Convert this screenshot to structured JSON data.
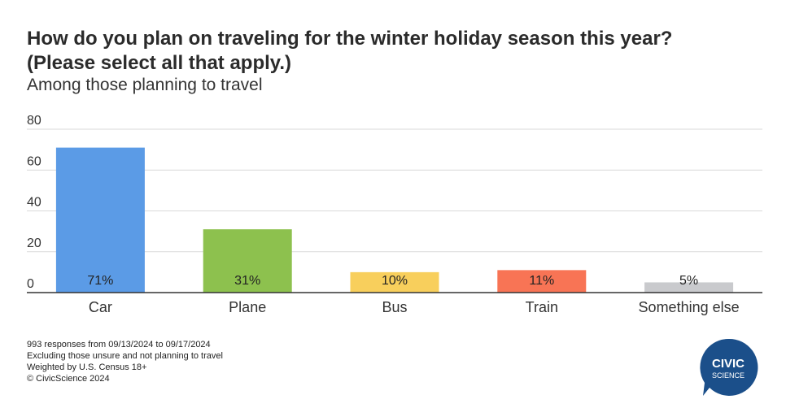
{
  "title_line1": "How do you plan on traveling for the winter holiday season this year?",
  "title_line2": "(Please select all that apply.)",
  "subtitle": "Among those planning to travel",
  "footnotes": [
    "993 responses from 09/13/2024 to 09/17/2024",
    "Excluding those unsure and not planning to travel",
    "Weighted by U.S. Census 18+",
    "© CivicScience 2024"
  ],
  "logo": {
    "line1": "CIVIC",
    "line2": "SCIENCE",
    "color": "#1b4f8a"
  },
  "chart_data": {
    "type": "bar",
    "categories": [
      "Car",
      "Plane",
      "Bus",
      "Train",
      "Something else"
    ],
    "values": [
      71,
      31,
      10,
      11,
      5
    ],
    "labels": [
      "71%",
      "31%",
      "10%",
      "11%",
      "5%"
    ],
    "colors": [
      "#5b9be6",
      "#8dc14e",
      "#f8cf5c",
      "#f87455",
      "#c9cacd"
    ],
    "ylim": [
      0,
      80
    ],
    "yticks": [
      0,
      20,
      40,
      60,
      80
    ],
    "grid": true,
    "legend": "none"
  }
}
